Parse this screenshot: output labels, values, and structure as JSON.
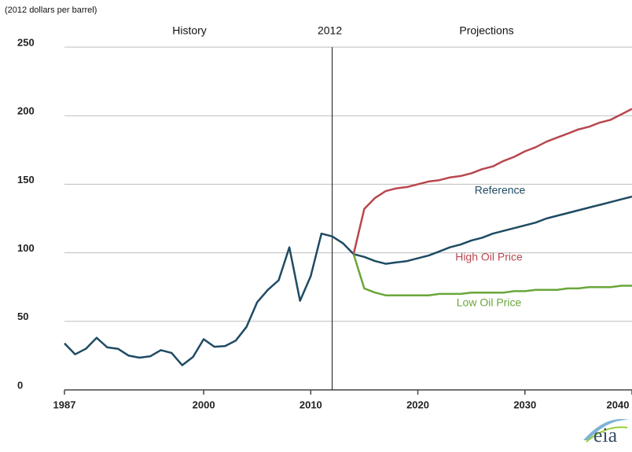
{
  "chart_data": {
    "type": "line",
    "y_label": "(2012 dollars per barrel)",
    "annotations": [
      "History",
      "Projections"
    ],
    "divider_x": 2012,
    "logo": "eia",
    "x": [
      1987,
      1988,
      1989,
      1990,
      1991,
      1992,
      1993,
      1994,
      1995,
      1996,
      1997,
      1998,
      1999,
      2000,
      2001,
      2002,
      2003,
      2004,
      2005,
      2006,
      2007,
      2008,
      2009,
      2010,
      2011,
      2012,
      2013,
      2014,
      2015,
      2016,
      2017,
      2018,
      2019,
      2020,
      2021,
      2022,
      2023,
      2024,
      2025,
      2026,
      2027,
      2028,
      2029,
      2030,
      2031,
      2032,
      2033,
      2034,
      2035,
      2036,
      2037,
      2038,
      2039,
      2040
    ],
    "series": [
      {
        "color": "#1f4b63",
        "values": [
          34,
          26,
          30,
          38,
          31,
          30,
          25,
          23.5,
          24.5,
          29,
          27,
          18,
          24,
          37,
          31.5,
          32,
          36,
          46,
          64,
          73,
          80,
          104,
          65,
          83,
          114,
          112,
          107,
          99,
          null,
          null,
          null,
          null,
          null,
          null,
          null,
          null,
          null,
          null,
          null,
          null,
          null,
          null,
          null,
          null,
          null,
          null,
          null,
          null,
          null,
          null,
          null,
          null,
          null,
          null
        ]
      },
      {
        "name": "Reference",
        "color": "#1f4b63",
        "values": [
          null,
          null,
          null,
          null,
          null,
          null,
          null,
          null,
          null,
          null,
          null,
          null,
          null,
          null,
          null,
          null,
          null,
          null,
          null,
          null,
          null,
          null,
          null,
          null,
          null,
          null,
          null,
          99,
          97,
          94,
          92,
          93,
          94,
          96,
          98,
          101,
          104,
          106,
          109,
          111,
          114,
          116,
          118,
          120,
          122,
          125,
          127,
          129,
          131,
          133,
          135,
          137,
          139,
          141
        ]
      },
      {
        "name": "High Oil Price",
        "color": "#b8474e",
        "values": [
          null,
          null,
          null,
          null,
          null,
          null,
          null,
          null,
          null,
          null,
          null,
          null,
          null,
          null,
          null,
          null,
          null,
          null,
          null,
          null,
          null,
          null,
          null,
          null,
          null,
          null,
          null,
          99,
          132,
          140,
          145,
          147,
          148,
          150,
          152,
          153,
          155,
          156,
          158,
          161,
          163,
          167,
          170,
          174,
          177,
          181,
          184,
          187,
          190,
          192,
          195,
          197,
          201,
          205
        ]
      },
      {
        "name": "Low Oil Price",
        "color": "#6aa63a",
        "values": [
          null,
          null,
          null,
          null,
          null,
          null,
          null,
          null,
          null,
          null,
          null,
          null,
          null,
          null,
          null,
          null,
          null,
          null,
          null,
          null,
          null,
          null,
          null,
          null,
          null,
          null,
          null,
          99,
          74,
          71,
          69,
          69,
          69,
          69,
          69,
          70,
          70,
          70,
          71,
          71,
          71,
          71,
          72,
          72,
          73,
          73,
          73,
          74,
          74,
          75,
          75,
          75,
          76,
          76
        ]
      }
    ],
    "xlim": [
      1987,
      2040
    ],
    "ylim": [
      0,
      250
    ],
    "xticks": [
      1987,
      2000,
      2010,
      2020,
      2030,
      2040
    ],
    "yticks": [
      0,
      50,
      100,
      150,
      200,
      250
    ],
    "grid": true
  }
}
